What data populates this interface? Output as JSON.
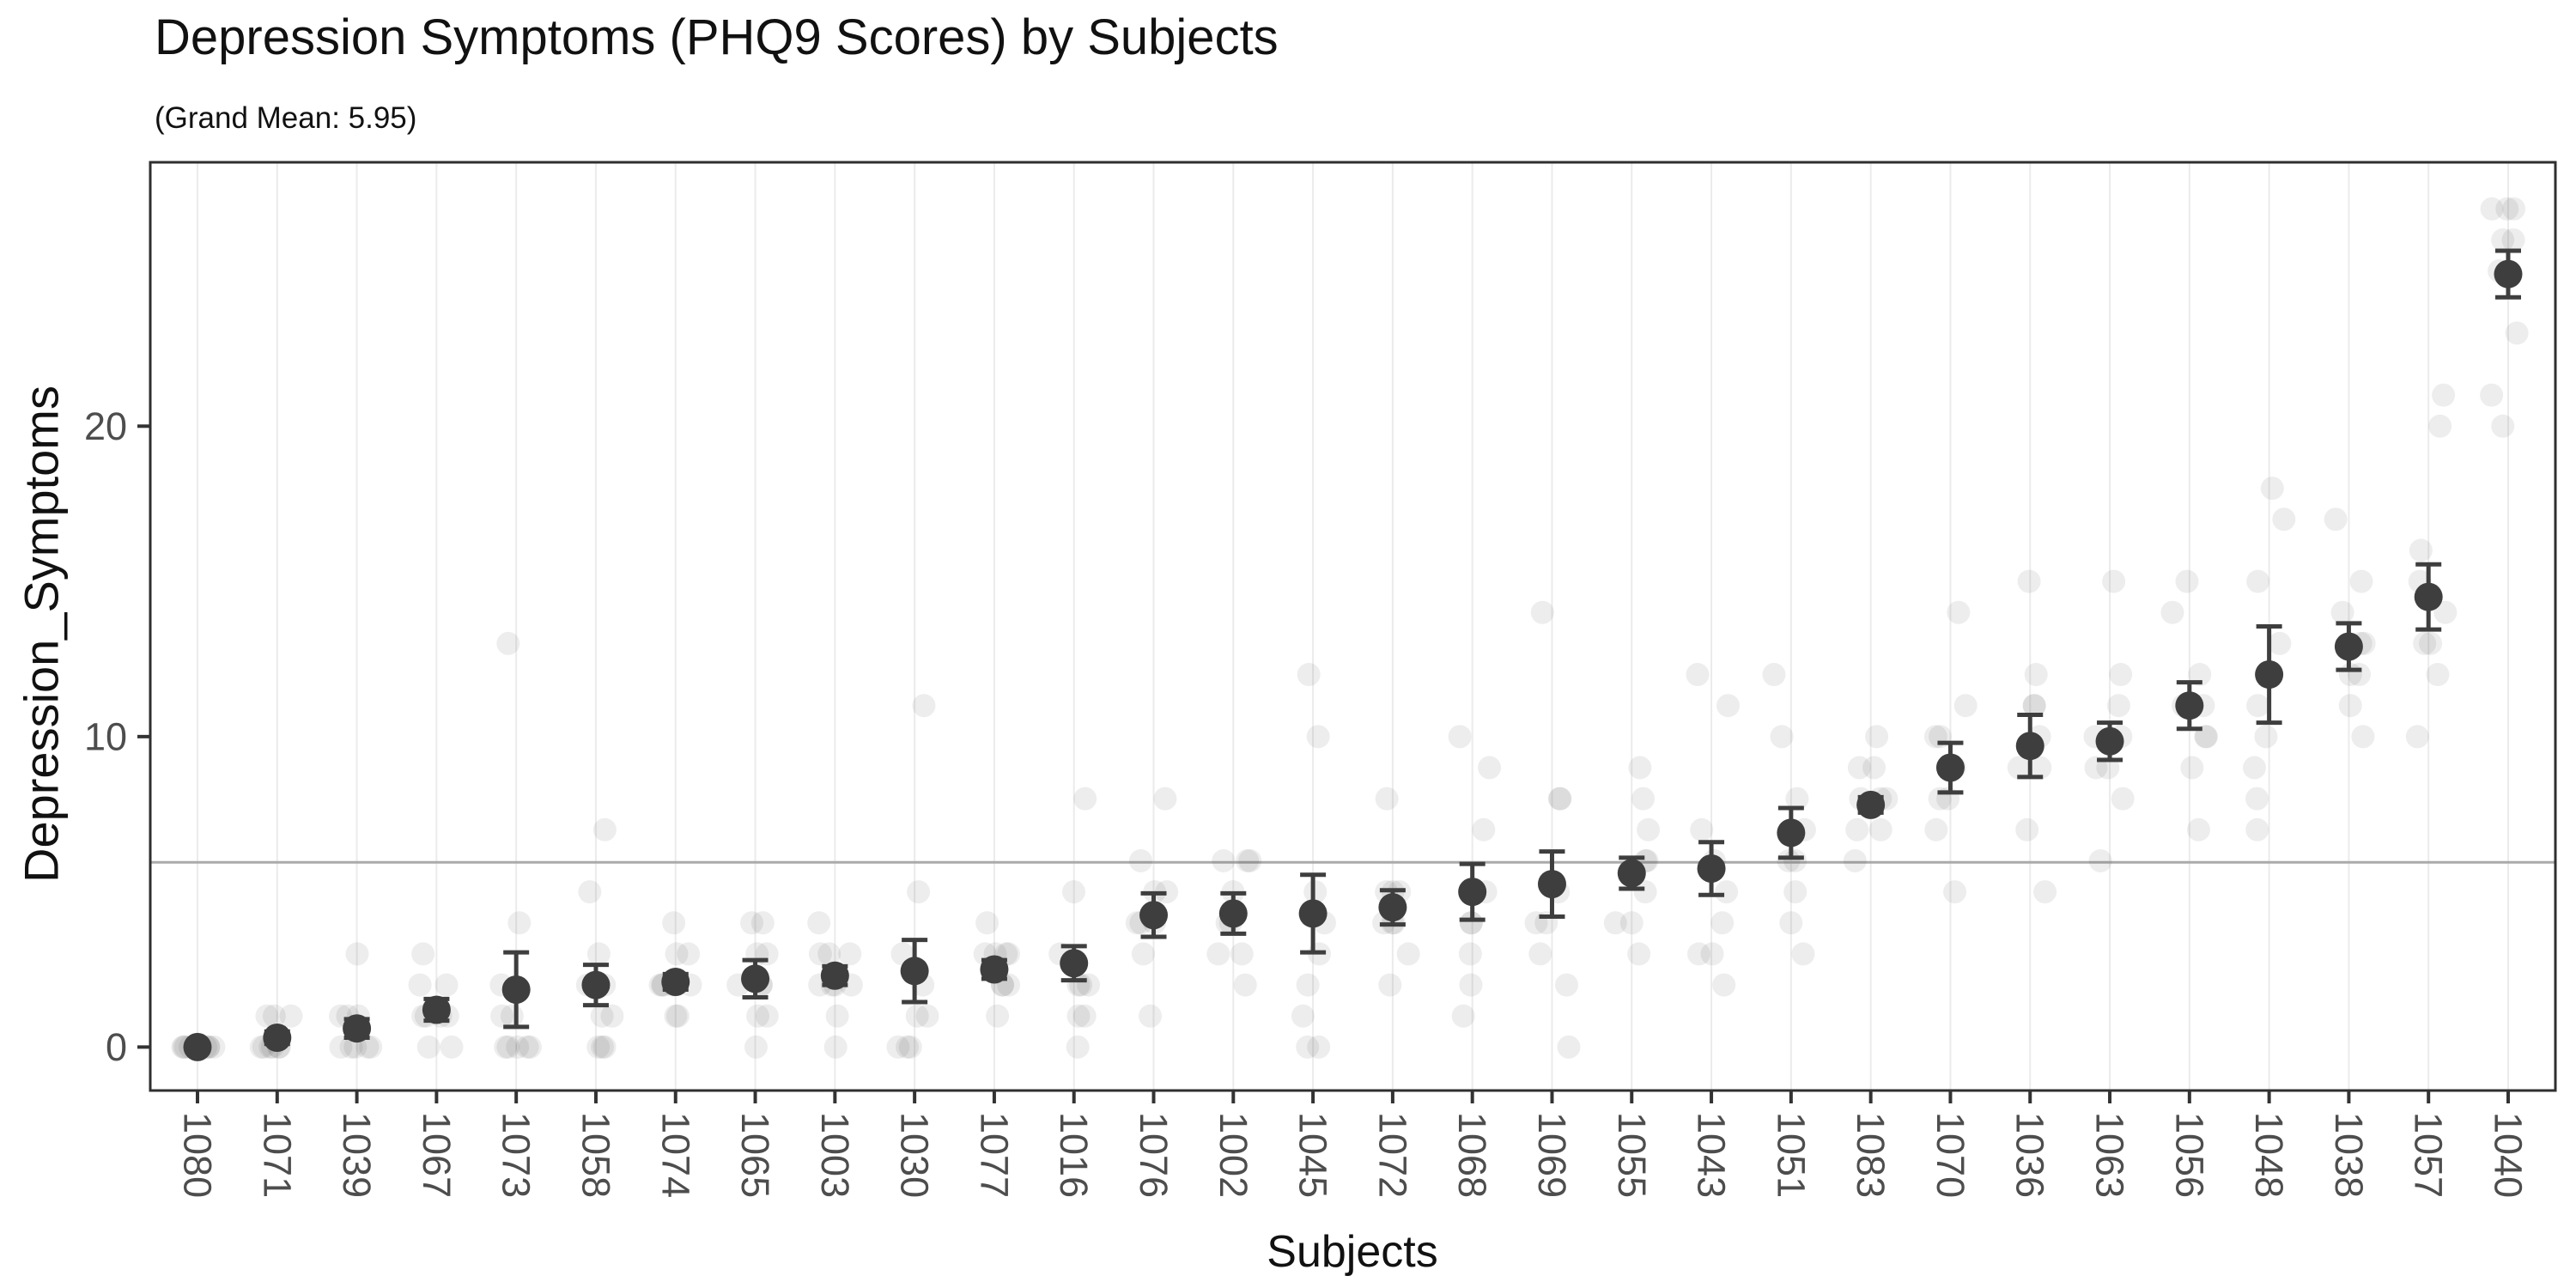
{
  "header": {
    "title": "Depression Symptoms (PHQ9 Scores) by Subjects",
    "subtitle": "(Grand Mean: 5.95)"
  },
  "chart_data": {
    "type": "scatter",
    "title": "Depression Symptoms (PHQ9 Scores) by Subjects",
    "subtitle": "(Grand Mean: 5.95)",
    "xlabel": "Subjects",
    "ylabel": "Depression_Symptoms",
    "grand_mean": 5.95,
    "grand_mean_line": true,
    "y_ticks": [
      0,
      10,
      20
    ],
    "ylim": [
      -1.4,
      28.5
    ],
    "grid": "vertical-only",
    "legend": "none",
    "marker_style": "mean-dot-with-se-errorbar-plus-raw-jitter",
    "subjects": [
      {
        "id": "1080",
        "mean": 0.0,
        "ci": [
          0.0,
          0.0
        ],
        "points": [
          0,
          0,
          0,
          0,
          0,
          0,
          0,
          0,
          0
        ]
      },
      {
        "id": "1071",
        "mean": 0.3,
        "ci": [
          0.1,
          0.5
        ],
        "points": [
          0,
          0,
          0,
          0,
          0,
          0,
          1,
          1,
          1
        ]
      },
      {
        "id": "1039",
        "mean": 0.6,
        "ci": [
          0.3,
          0.9
        ],
        "points": [
          0,
          0,
          0,
          0,
          0,
          1,
          1,
          1,
          3
        ]
      },
      {
        "id": "1067",
        "mean": 1.2,
        "ci": [
          0.85,
          1.55
        ],
        "points": [
          0,
          0,
          1,
          1,
          1,
          1,
          2,
          2,
          3
        ]
      },
      {
        "id": "1073",
        "mean": 1.85,
        "ci": [
          0.65,
          3.05
        ],
        "points": [
          0,
          0,
          0,
          0,
          0,
          1,
          1,
          2,
          4,
          13
        ]
      },
      {
        "id": "1058",
        "mean": 2.0,
        "ci": [
          1.35,
          2.65
        ],
        "points": [
          0,
          0,
          0,
          1,
          1,
          2,
          2,
          3,
          5,
          7
        ]
      },
      {
        "id": "1074",
        "mean": 2.1,
        "ci": [
          1.85,
          2.35
        ],
        "points": [
          1,
          1,
          2,
          2,
          2,
          2,
          2,
          3,
          3,
          4
        ]
      },
      {
        "id": "1065",
        "mean": 2.2,
        "ci": [
          1.6,
          2.8
        ],
        "points": [
          0,
          1,
          1,
          2,
          2,
          2,
          3,
          3,
          4,
          4
        ]
      },
      {
        "id": "1003",
        "mean": 2.3,
        "ci": [
          2.0,
          2.6
        ],
        "points": [
          0,
          1,
          2,
          2,
          2,
          2,
          3,
          3,
          3,
          4
        ]
      },
      {
        "id": "1030",
        "mean": 2.45,
        "ci": [
          1.45,
          3.45
        ],
        "points": [
          0,
          0,
          0,
          1,
          1,
          2,
          3,
          5,
          11
        ]
      },
      {
        "id": "1077",
        "mean": 2.5,
        "ci": [
          2.2,
          2.8
        ],
        "points": [
          1,
          2,
          2,
          2,
          3,
          3,
          3,
          3,
          4
        ]
      },
      {
        "id": "1016",
        "mean": 2.7,
        "ci": [
          2.15,
          3.25
        ],
        "points": [
          0,
          1,
          1,
          2,
          2,
          2,
          3,
          5,
          8
        ]
      },
      {
        "id": "1076",
        "mean": 4.25,
        "ci": [
          3.55,
          4.95
        ],
        "points": [
          1,
          3,
          4,
          4,
          4,
          5,
          5,
          6,
          8
        ]
      },
      {
        "id": "1002",
        "mean": 4.3,
        "ci": [
          3.65,
          4.95
        ],
        "points": [
          2,
          3,
          3,
          4,
          4,
          5,
          6,
          6,
          6
        ]
      },
      {
        "id": "1045",
        "mean": 4.3,
        "ci": [
          3.05,
          5.55
        ],
        "points": [
          0,
          0,
          1,
          2,
          3,
          4,
          5,
          10,
          12
        ]
      },
      {
        "id": "1072",
        "mean": 4.5,
        "ci": [
          3.95,
          5.05
        ],
        "points": [
          2,
          3,
          4,
          4,
          4,
          5,
          5,
          5,
          8
        ]
      },
      {
        "id": "1068",
        "mean": 5.0,
        "ci": [
          4.1,
          5.9
        ],
        "points": [
          1,
          2,
          3,
          4,
          4,
          5,
          7,
          9,
          10
        ]
      },
      {
        "id": "1069",
        "mean": 5.25,
        "ci": [
          4.2,
          6.3
        ],
        "points": [
          0,
          2,
          3,
          4,
          4,
          5,
          8,
          8,
          14
        ]
      },
      {
        "id": "1055",
        "mean": 5.6,
        "ci": [
          5.1,
          6.1
        ],
        "points": [
          3,
          4,
          4,
          5,
          6,
          6,
          7,
          8,
          9
        ]
      },
      {
        "id": "1043",
        "mean": 5.75,
        "ci": [
          4.9,
          6.6
        ],
        "points": [
          2,
          3,
          3,
          4,
          5,
          6,
          7,
          11,
          12
        ]
      },
      {
        "id": "1051",
        "mean": 6.9,
        "ci": [
          6.1,
          7.7
        ],
        "points": [
          3,
          4,
          5,
          6,
          6,
          7,
          8,
          10,
          12
        ]
      },
      {
        "id": "1083",
        "mean": 7.8,
        "ci": [
          7.55,
          8.05
        ],
        "points": [
          6,
          7,
          7,
          8,
          8,
          8,
          9,
          9,
          10
        ]
      },
      {
        "id": "1070",
        "mean": 9.0,
        "ci": [
          8.2,
          9.8
        ],
        "points": [
          5,
          7,
          8,
          8,
          9,
          10,
          10,
          11,
          14
        ]
      },
      {
        "id": "1036",
        "mean": 9.7,
        "ci": [
          8.7,
          10.7
        ],
        "points": [
          5,
          7,
          9,
          9,
          10,
          11,
          11,
          12,
          15
        ]
      },
      {
        "id": "1063",
        "mean": 9.85,
        "ci": [
          9.25,
          10.45
        ],
        "points": [
          6,
          8,
          9,
          9,
          10,
          10,
          11,
          12,
          15
        ]
      },
      {
        "id": "1056",
        "mean": 11.0,
        "ci": [
          10.25,
          11.75
        ],
        "points": [
          7,
          9,
          10,
          10,
          11,
          11,
          12,
          14,
          15
        ]
      },
      {
        "id": "1048",
        "mean": 12.0,
        "ci": [
          10.45,
          13.55
        ],
        "points": [
          7,
          8,
          9,
          10,
          11,
          13,
          15,
          17,
          18
        ]
      },
      {
        "id": "1038",
        "mean": 12.9,
        "ci": [
          12.15,
          13.65
        ],
        "points": [
          10,
          11,
          12,
          12,
          13,
          13,
          14,
          15,
          17
        ]
      },
      {
        "id": "1057",
        "mean": 14.5,
        "ci": [
          13.45,
          15.55
        ],
        "points": [
          10,
          12,
          13,
          13,
          14,
          15,
          16,
          20,
          21
        ]
      },
      {
        "id": "1040",
        "mean": 24.9,
        "ci": [
          24.15,
          25.65
        ],
        "points": [
          20,
          21,
          23,
          25,
          26,
          26,
          27,
          27,
          27
        ]
      }
    ]
  },
  "colors": {
    "mean_point": "#3e3e3e",
    "error_bar": "#3e3e3e",
    "jitter_point_rgba": "rgba(80,80,80,0.10)",
    "grand_mean_line": "#aaaaaa",
    "gridline": "#ebebeb",
    "panel_border": "#2f2f2f",
    "tick_text": "#4d4d4d",
    "tick_mark": "#333333",
    "title_text": "#111111",
    "background": "#ffffff"
  }
}
